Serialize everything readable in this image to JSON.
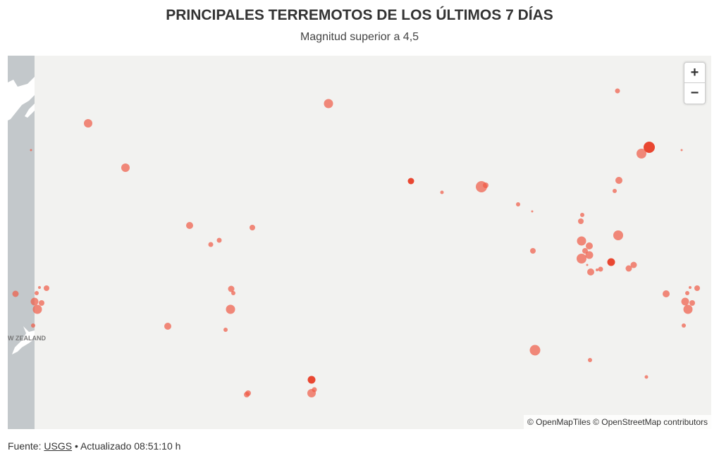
{
  "header": {
    "title": "PRINCIPALES TERREMOTOS DE LOS ÚLTIMOS 7 DÍAS",
    "subtitle": "Magnitud superior a 4,5"
  },
  "map": {
    "place_label": "W ZEALAND",
    "zoom_in": "+",
    "zoom_out": "−",
    "attribution": "© OpenMapTiles © OpenStreetMap contributors"
  },
  "footer": {
    "source_label": "Fuente:",
    "source_link": "USGS",
    "updated": "• Actualizado 08:51:10 h"
  }
}
